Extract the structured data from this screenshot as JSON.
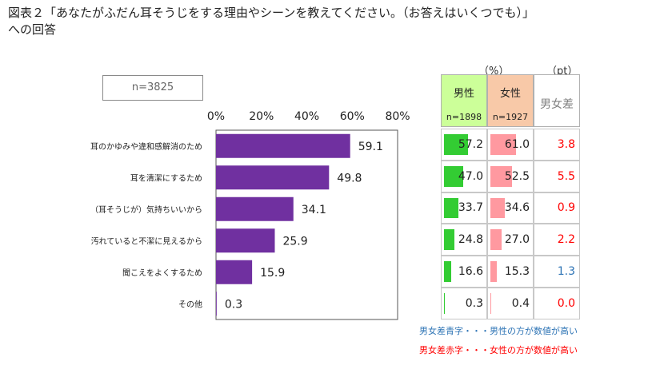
{
  "title": "図表２「あなたがふだん耳そうじをする理由やシーンを教えてください。（お答えはいくつでも）」\nへの回答",
  "sample_label": "n=3825",
  "colors": {
    "main_bar": "#7030a0",
    "male_bar": "#33cc33",
    "female_bar": "#ff99a0",
    "male_header": "#ccff99",
    "female_header": "#f8c9a8",
    "diff_header": "#ffffff",
    "positive_diff": "#ff0000",
    "negative_diff": "#2e74b5"
  },
  "chart_data": {
    "type": "bar",
    "orientation": "horizontal",
    "categories": [
      "耳のかゆみや違和感解消のため",
      "耳を清潔にするため",
      "（耳そうじが）気持ちいいから",
      "汚れていると不潔に見えるから",
      "聞こえをよくするため",
      "その他"
    ],
    "values": [
      59.1,
      49.8,
      34.1,
      25.9,
      15.9,
      0.3
    ],
    "value_labels": [
      "59.1",
      "49.8",
      "34.1",
      "25.9",
      "15.9",
      "0.3"
    ],
    "xlim": [
      0,
      80
    ],
    "x_ticks": [
      "0%",
      "20%",
      "40%",
      "60%",
      "80%"
    ],
    "grid": false
  },
  "table": {
    "unit_percent": "（%）",
    "unit_pt": "（pt）",
    "columns": [
      {
        "label": "男性",
        "n": "n=1898"
      },
      {
        "label": "女性",
        "n": "n=1927"
      },
      {
        "label": "男女差",
        "n": ""
      }
    ],
    "male_values": [
      57.2,
      47.0,
      33.7,
      24.8,
      16.6,
      0.3
    ],
    "male_labels": [
      "57.2",
      "47.0",
      "33.7",
      "24.8",
      "16.6",
      "0.3"
    ],
    "female_values": [
      61.0,
      52.5,
      34.6,
      27.0,
      15.3,
      0.4
    ],
    "female_labels": [
      "61.0",
      "52.5",
      "34.6",
      "27.0",
      "15.3",
      "0.4"
    ],
    "diff_labels": [
      "3.8",
      "5.5",
      "0.9",
      "2.2",
      "1.3",
      "0.0"
    ],
    "diff_signs": [
      "female",
      "female",
      "female",
      "female",
      "male",
      "female"
    ],
    "bar_max": 100
  },
  "legend": {
    "blue_note": "男女差青字・・・男性の方が数値が高い",
    "red_note": "男女差赤字・・・女性の方が数値が高い"
  }
}
